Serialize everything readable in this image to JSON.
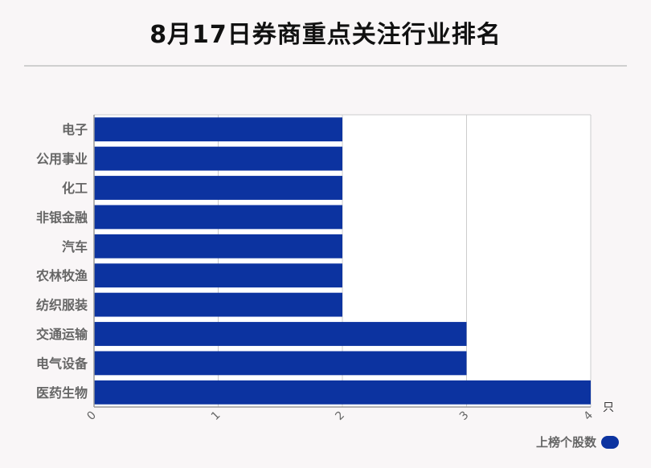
{
  "title": "8月17日券商重点关注行业排名",
  "unit": "只",
  "colors": {
    "bar": "#0c33a0",
    "grid": "#cccccc",
    "axis": "#999999"
  },
  "chart_data": {
    "type": "bar",
    "orientation": "horizontal",
    "categories": [
      "电子",
      "公用事业",
      "化工",
      "非银金融",
      "汽车",
      "农林牧渔",
      "纺织服装",
      "交通运输",
      "电气设备",
      "医药生物"
    ],
    "series": [
      {
        "name": "上榜个股数",
        "values": [
          2,
          2,
          2,
          2,
          2,
          2,
          2,
          3,
          3,
          4
        ]
      }
    ],
    "xlim": [
      0,
      4
    ],
    "xticks": [
      "0",
      "1",
      "2",
      "3",
      "4"
    ],
    "grid": true,
    "legend": "bottom-right"
  }
}
